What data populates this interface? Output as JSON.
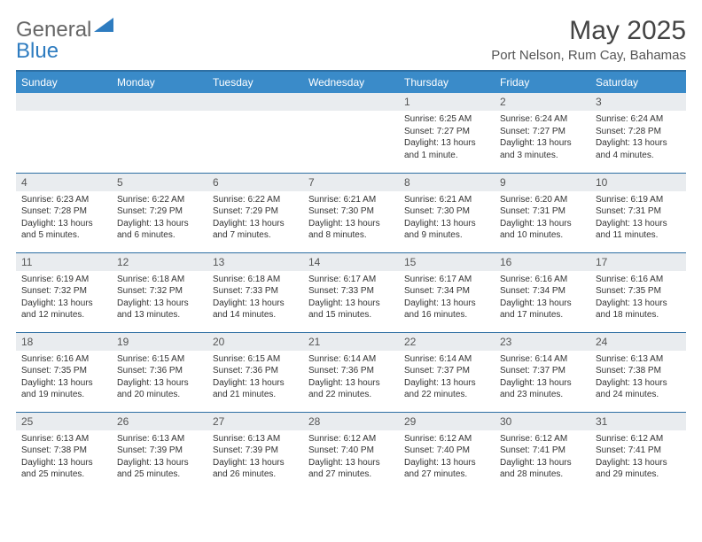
{
  "brand": {
    "part1": "General",
    "part2": "Blue"
  },
  "title": "May 2025",
  "location": "Port Nelson, Rum Cay, Bahamas",
  "colors": {
    "header_bg": "#3a8bc9",
    "header_border": "#2e6fa3",
    "daynum_bg": "#e9ecef",
    "text": "#333333",
    "brand_blue": "#2e7cc0"
  },
  "weekdays": [
    "Sunday",
    "Monday",
    "Tuesday",
    "Wednesday",
    "Thursday",
    "Friday",
    "Saturday"
  ],
  "weeks": [
    [
      {
        "day": "",
        "lines": []
      },
      {
        "day": "",
        "lines": []
      },
      {
        "day": "",
        "lines": []
      },
      {
        "day": "",
        "lines": []
      },
      {
        "day": "1",
        "lines": [
          "Sunrise: 6:25 AM",
          "Sunset: 7:27 PM",
          "Daylight: 13 hours and 1 minute."
        ]
      },
      {
        "day": "2",
        "lines": [
          "Sunrise: 6:24 AM",
          "Sunset: 7:27 PM",
          "Daylight: 13 hours and 3 minutes."
        ]
      },
      {
        "day": "3",
        "lines": [
          "Sunrise: 6:24 AM",
          "Sunset: 7:28 PM",
          "Daylight: 13 hours and 4 minutes."
        ]
      }
    ],
    [
      {
        "day": "4",
        "lines": [
          "Sunrise: 6:23 AM",
          "Sunset: 7:28 PM",
          "Daylight: 13 hours and 5 minutes."
        ]
      },
      {
        "day": "5",
        "lines": [
          "Sunrise: 6:22 AM",
          "Sunset: 7:29 PM",
          "Daylight: 13 hours and 6 minutes."
        ]
      },
      {
        "day": "6",
        "lines": [
          "Sunrise: 6:22 AM",
          "Sunset: 7:29 PM",
          "Daylight: 13 hours and 7 minutes."
        ]
      },
      {
        "day": "7",
        "lines": [
          "Sunrise: 6:21 AM",
          "Sunset: 7:30 PM",
          "Daylight: 13 hours and 8 minutes."
        ]
      },
      {
        "day": "8",
        "lines": [
          "Sunrise: 6:21 AM",
          "Sunset: 7:30 PM",
          "Daylight: 13 hours and 9 minutes."
        ]
      },
      {
        "day": "9",
        "lines": [
          "Sunrise: 6:20 AM",
          "Sunset: 7:31 PM",
          "Daylight: 13 hours and 10 minutes."
        ]
      },
      {
        "day": "10",
        "lines": [
          "Sunrise: 6:19 AM",
          "Sunset: 7:31 PM",
          "Daylight: 13 hours and 11 minutes."
        ]
      }
    ],
    [
      {
        "day": "11",
        "lines": [
          "Sunrise: 6:19 AM",
          "Sunset: 7:32 PM",
          "Daylight: 13 hours and 12 minutes."
        ]
      },
      {
        "day": "12",
        "lines": [
          "Sunrise: 6:18 AM",
          "Sunset: 7:32 PM",
          "Daylight: 13 hours and 13 minutes."
        ]
      },
      {
        "day": "13",
        "lines": [
          "Sunrise: 6:18 AM",
          "Sunset: 7:33 PM",
          "Daylight: 13 hours and 14 minutes."
        ]
      },
      {
        "day": "14",
        "lines": [
          "Sunrise: 6:17 AM",
          "Sunset: 7:33 PM",
          "Daylight: 13 hours and 15 minutes."
        ]
      },
      {
        "day": "15",
        "lines": [
          "Sunrise: 6:17 AM",
          "Sunset: 7:34 PM",
          "Daylight: 13 hours and 16 minutes."
        ]
      },
      {
        "day": "16",
        "lines": [
          "Sunrise: 6:16 AM",
          "Sunset: 7:34 PM",
          "Daylight: 13 hours and 17 minutes."
        ]
      },
      {
        "day": "17",
        "lines": [
          "Sunrise: 6:16 AM",
          "Sunset: 7:35 PM",
          "Daylight: 13 hours and 18 minutes."
        ]
      }
    ],
    [
      {
        "day": "18",
        "lines": [
          "Sunrise: 6:16 AM",
          "Sunset: 7:35 PM",
          "Daylight: 13 hours and 19 minutes."
        ]
      },
      {
        "day": "19",
        "lines": [
          "Sunrise: 6:15 AM",
          "Sunset: 7:36 PM",
          "Daylight: 13 hours and 20 minutes."
        ]
      },
      {
        "day": "20",
        "lines": [
          "Sunrise: 6:15 AM",
          "Sunset: 7:36 PM",
          "Daylight: 13 hours and 21 minutes."
        ]
      },
      {
        "day": "21",
        "lines": [
          "Sunrise: 6:14 AM",
          "Sunset: 7:36 PM",
          "Daylight: 13 hours and 22 minutes."
        ]
      },
      {
        "day": "22",
        "lines": [
          "Sunrise: 6:14 AM",
          "Sunset: 7:37 PM",
          "Daylight: 13 hours and 22 minutes."
        ]
      },
      {
        "day": "23",
        "lines": [
          "Sunrise: 6:14 AM",
          "Sunset: 7:37 PM",
          "Daylight: 13 hours and 23 minutes."
        ]
      },
      {
        "day": "24",
        "lines": [
          "Sunrise: 6:13 AM",
          "Sunset: 7:38 PM",
          "Daylight: 13 hours and 24 minutes."
        ]
      }
    ],
    [
      {
        "day": "25",
        "lines": [
          "Sunrise: 6:13 AM",
          "Sunset: 7:38 PM",
          "Daylight: 13 hours and 25 minutes."
        ]
      },
      {
        "day": "26",
        "lines": [
          "Sunrise: 6:13 AM",
          "Sunset: 7:39 PM",
          "Daylight: 13 hours and 25 minutes."
        ]
      },
      {
        "day": "27",
        "lines": [
          "Sunrise: 6:13 AM",
          "Sunset: 7:39 PM",
          "Daylight: 13 hours and 26 minutes."
        ]
      },
      {
        "day": "28",
        "lines": [
          "Sunrise: 6:12 AM",
          "Sunset: 7:40 PM",
          "Daylight: 13 hours and 27 minutes."
        ]
      },
      {
        "day": "29",
        "lines": [
          "Sunrise: 6:12 AM",
          "Sunset: 7:40 PM",
          "Daylight: 13 hours and 27 minutes."
        ]
      },
      {
        "day": "30",
        "lines": [
          "Sunrise: 6:12 AM",
          "Sunset: 7:41 PM",
          "Daylight: 13 hours and 28 minutes."
        ]
      },
      {
        "day": "31",
        "lines": [
          "Sunrise: 6:12 AM",
          "Sunset: 7:41 PM",
          "Daylight: 13 hours and 29 minutes."
        ]
      }
    ]
  ]
}
